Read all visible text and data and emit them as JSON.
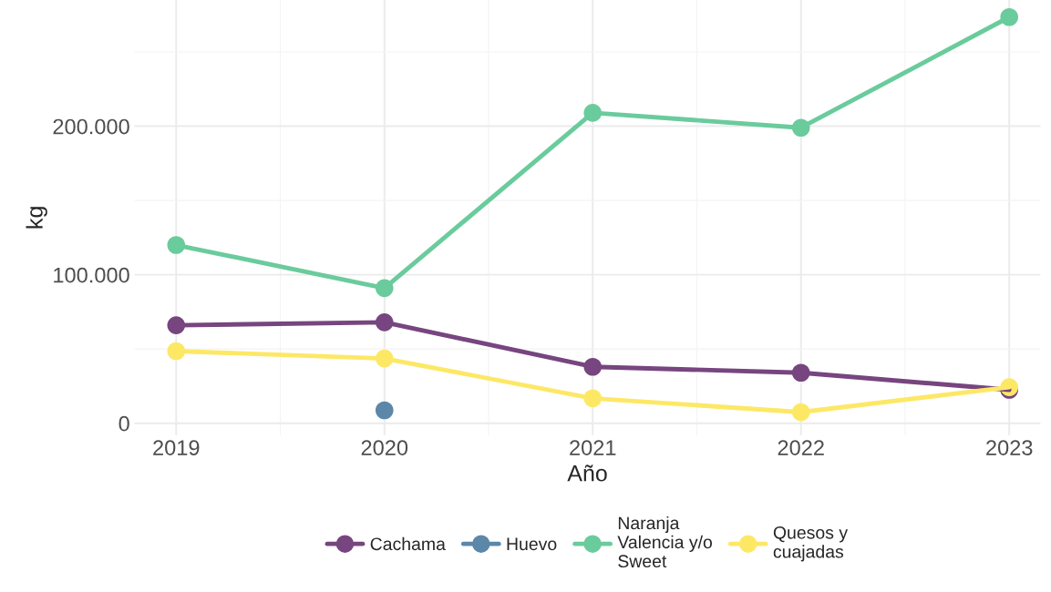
{
  "chart_data": {
    "type": "line",
    "xlabel": "Año",
    "ylabel": "kg",
    "x": [
      2019,
      2020,
      2021,
      2022,
      2023
    ],
    "series": [
      {
        "name": "Cachama",
        "color": "#77457f",
        "values": [
          66000,
          68000,
          38000,
          34000,
          22500
        ]
      },
      {
        "name": "Huevo",
        "color": "#5c87a8",
        "values": [
          null,
          8700,
          null,
          null,
          null
        ]
      },
      {
        "name": "Naranja\nValencia y/o\nSweet",
        "color": "#6acb9c",
        "values": [
          120000,
          91000,
          209000,
          199000,
          273500
        ]
      },
      {
        "name": "Quesos y\ncuajadas",
        "color": "#fde866",
        "values": [
          48600,
          43600,
          16800,
          7500,
          24300
        ]
      }
    ],
    "xlim": [
      2018.8,
      2023.15
    ],
    "ylim": [
      -8000,
      285000
    ],
    "xticks": [
      2019,
      2020,
      2021,
      2022,
      2023
    ],
    "yticks": [
      0,
      {
        "value": 100000,
        "label": "100.000"
      },
      {
        "value": 200000,
        "label": "200.000"
      }
    ],
    "grid": true,
    "legend": "bottom",
    "marker": "circle",
    "line_style": "solid"
  }
}
